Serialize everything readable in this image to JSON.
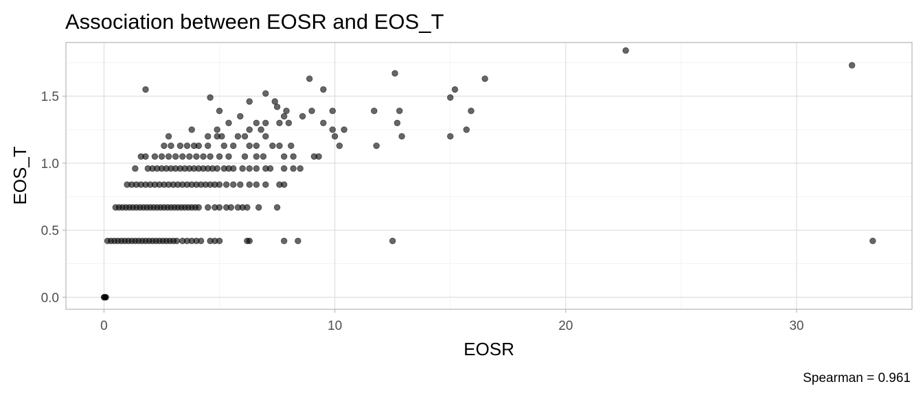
{
  "chart_data": {
    "type": "scatter",
    "title": "Association between EOSR and EOS_T",
    "xlabel": "EOSR",
    "ylabel": "EOS_T",
    "caption": "Spearman = 0.961",
    "xlim": [
      -1.65,
      35
    ],
    "ylim": [
      -0.09,
      1.9
    ],
    "xticks": [
      0,
      10,
      20,
      30
    ],
    "xtick_labels": [
      "0",
      "10",
      "20",
      "30"
    ],
    "yticks": [
      0.0,
      0.5,
      1.0,
      1.5
    ],
    "ytick_labels": [
      "0.0",
      "0.5",
      "1.0",
      "1.5"
    ],
    "grid": true,
    "point_color": "#000000",
    "point_alpha": 0.6,
    "points": [
      [
        0,
        0
      ],
      [
        0.02,
        0
      ],
      [
        0.05,
        0
      ],
      [
        0.08,
        0
      ],
      [
        0.15,
        0.42
      ],
      [
        0.3,
        0.42
      ],
      [
        0.45,
        0.42
      ],
      [
        0.6,
        0.42
      ],
      [
        0.75,
        0.42
      ],
      [
        0.9,
        0.42
      ],
      [
        1.05,
        0.42
      ],
      [
        1.2,
        0.42
      ],
      [
        1.35,
        0.42
      ],
      [
        1.5,
        0.42
      ],
      [
        1.65,
        0.42
      ],
      [
        1.8,
        0.42
      ],
      [
        1.95,
        0.42
      ],
      [
        2.1,
        0.42
      ],
      [
        2.25,
        0.42
      ],
      [
        2.4,
        0.42
      ],
      [
        2.55,
        0.42
      ],
      [
        2.7,
        0.42
      ],
      [
        2.85,
        0.42
      ],
      [
        3.0,
        0.42
      ],
      [
        3.15,
        0.42
      ],
      [
        3.4,
        0.42
      ],
      [
        3.6,
        0.42
      ],
      [
        3.8,
        0.42
      ],
      [
        4.0,
        0.42
      ],
      [
        4.2,
        0.42
      ],
      [
        4.6,
        0.42
      ],
      [
        4.8,
        0.42
      ],
      [
        5.0,
        0.42
      ],
      [
        6.2,
        0.42
      ],
      [
        6.3,
        0.42
      ],
      [
        7.8,
        0.42
      ],
      [
        8.4,
        0.42
      ],
      [
        12.5,
        0.42
      ],
      [
        33.3,
        0.42
      ],
      [
        0.5,
        0.67
      ],
      [
        0.65,
        0.67
      ],
      [
        0.8,
        0.67
      ],
      [
        0.95,
        0.67
      ],
      [
        1.1,
        0.67
      ],
      [
        1.25,
        0.67
      ],
      [
        1.4,
        0.67
      ],
      [
        1.55,
        0.67
      ],
      [
        1.7,
        0.67
      ],
      [
        1.85,
        0.67
      ],
      [
        2.0,
        0.67
      ],
      [
        2.15,
        0.67
      ],
      [
        2.3,
        0.67
      ],
      [
        2.45,
        0.67
      ],
      [
        2.6,
        0.67
      ],
      [
        2.75,
        0.67
      ],
      [
        2.9,
        0.67
      ],
      [
        3.05,
        0.67
      ],
      [
        3.2,
        0.67
      ],
      [
        3.35,
        0.67
      ],
      [
        3.5,
        0.67
      ],
      [
        3.65,
        0.67
      ],
      [
        3.8,
        0.67
      ],
      [
        3.95,
        0.67
      ],
      [
        4.1,
        0.67
      ],
      [
        4.5,
        0.67
      ],
      [
        4.8,
        0.67
      ],
      [
        5.0,
        0.67
      ],
      [
        5.3,
        0.67
      ],
      [
        5.5,
        0.67
      ],
      [
        5.8,
        0.67
      ],
      [
        6.0,
        0.67
      ],
      [
        6.2,
        0.67
      ],
      [
        6.7,
        0.67
      ],
      [
        7.5,
        0.67
      ],
      [
        1.0,
        0.84
      ],
      [
        1.2,
        0.84
      ],
      [
        1.4,
        0.84
      ],
      [
        1.6,
        0.84
      ],
      [
        1.8,
        0.84
      ],
      [
        2.0,
        0.84
      ],
      [
        2.2,
        0.84
      ],
      [
        2.4,
        0.84
      ],
      [
        2.6,
        0.84
      ],
      [
        2.8,
        0.84
      ],
      [
        3.0,
        0.84
      ],
      [
        3.2,
        0.84
      ],
      [
        3.4,
        0.84
      ],
      [
        3.6,
        0.84
      ],
      [
        3.8,
        0.84
      ],
      [
        4.0,
        0.84
      ],
      [
        4.2,
        0.84
      ],
      [
        4.4,
        0.84
      ],
      [
        4.6,
        0.84
      ],
      [
        4.8,
        0.84
      ],
      [
        5.0,
        0.84
      ],
      [
        5.3,
        0.84
      ],
      [
        5.6,
        0.84
      ],
      [
        5.9,
        0.84
      ],
      [
        6.3,
        0.84
      ],
      [
        6.6,
        0.84
      ],
      [
        7.0,
        0.84
      ],
      [
        7.6,
        0.84
      ],
      [
        7.8,
        0.84
      ],
      [
        1.35,
        0.96
      ],
      [
        1.9,
        0.96
      ],
      [
        2.1,
        0.96
      ],
      [
        2.3,
        0.96
      ],
      [
        2.5,
        0.96
      ],
      [
        2.7,
        0.96
      ],
      [
        2.9,
        0.96
      ],
      [
        3.1,
        0.96
      ],
      [
        3.3,
        0.96
      ],
      [
        3.5,
        0.96
      ],
      [
        3.7,
        0.96
      ],
      [
        3.9,
        0.96
      ],
      [
        4.1,
        0.96
      ],
      [
        4.3,
        0.96
      ],
      [
        4.5,
        0.96
      ],
      [
        4.7,
        0.96
      ],
      [
        4.9,
        0.96
      ],
      [
        5.2,
        0.96
      ],
      [
        5.4,
        0.96
      ],
      [
        5.6,
        0.96
      ],
      [
        6.0,
        0.96
      ],
      [
        6.3,
        0.96
      ],
      [
        6.6,
        0.96
      ],
      [
        7.0,
        0.96
      ],
      [
        7.2,
        0.96
      ],
      [
        7.8,
        0.96
      ],
      [
        8.2,
        0.96
      ],
      [
        8.5,
        0.96
      ],
      [
        1.6,
        1.05
      ],
      [
        1.8,
        1.05
      ],
      [
        2.2,
        1.05
      ],
      [
        2.5,
        1.05
      ],
      [
        2.8,
        1.05
      ],
      [
        3.1,
        1.05
      ],
      [
        3.4,
        1.05
      ],
      [
        3.7,
        1.05
      ],
      [
        4.0,
        1.05
      ],
      [
        4.3,
        1.05
      ],
      [
        4.6,
        1.05
      ],
      [
        5.0,
        1.05
      ],
      [
        5.4,
        1.05
      ],
      [
        6.1,
        1.05
      ],
      [
        6.6,
        1.05
      ],
      [
        6.9,
        1.05
      ],
      [
        7.8,
        1.05
      ],
      [
        8.2,
        1.05
      ],
      [
        9.1,
        1.05
      ],
      [
        9.3,
        1.05
      ],
      [
        2.6,
        1.13
      ],
      [
        2.9,
        1.13
      ],
      [
        3.3,
        1.13
      ],
      [
        3.6,
        1.13
      ],
      [
        3.9,
        1.13
      ],
      [
        4.1,
        1.13
      ],
      [
        4.5,
        1.13
      ],
      [
        5.2,
        1.13
      ],
      [
        5.6,
        1.13
      ],
      [
        6.3,
        1.13
      ],
      [
        6.6,
        1.13
      ],
      [
        7.3,
        1.13
      ],
      [
        7.6,
        1.13
      ],
      [
        8.1,
        1.13
      ],
      [
        10.2,
        1.13
      ],
      [
        11.8,
        1.13
      ],
      [
        2.8,
        1.2
      ],
      [
        4.5,
        1.2
      ],
      [
        4.9,
        1.2
      ],
      [
        5.1,
        1.2
      ],
      [
        5.8,
        1.2
      ],
      [
        6.1,
        1.2
      ],
      [
        7.0,
        1.2
      ],
      [
        10.0,
        1.2
      ],
      [
        12.9,
        1.2
      ],
      [
        15.0,
        1.2
      ],
      [
        3.8,
        1.25
      ],
      [
        4.9,
        1.25
      ],
      [
        6.3,
        1.25
      ],
      [
        6.8,
        1.25
      ],
      [
        9.9,
        1.25
      ],
      [
        10.4,
        1.25
      ],
      [
        15.7,
        1.25
      ],
      [
        5.4,
        1.3
      ],
      [
        6.6,
        1.3
      ],
      [
        7.0,
        1.3
      ],
      [
        7.6,
        1.3
      ],
      [
        8.0,
        1.3
      ],
      [
        9.5,
        1.3
      ],
      [
        12.7,
        1.3
      ],
      [
        7.8,
        1.35
      ],
      [
        8.6,
        1.35
      ],
      [
        5.9,
        1.35
      ],
      [
        5.0,
        1.39
      ],
      [
        7.9,
        1.39
      ],
      [
        9.0,
        1.39
      ],
      [
        9.9,
        1.39
      ],
      [
        11.7,
        1.39
      ],
      [
        12.8,
        1.39
      ],
      [
        15.9,
        1.39
      ],
      [
        7.5,
        1.42
      ],
      [
        6.3,
        1.46
      ],
      [
        7.4,
        1.46
      ],
      [
        4.6,
        1.49
      ],
      [
        15.0,
        1.49
      ],
      [
        7.0,
        1.52
      ],
      [
        1.8,
        1.55
      ],
      [
        9.5,
        1.55
      ],
      [
        15.2,
        1.55
      ],
      [
        8.9,
        1.63
      ],
      [
        16.5,
        1.63
      ],
      [
        12.6,
        1.67
      ],
      [
        32.4,
        1.73
      ],
      [
        22.6,
        1.84
      ]
    ]
  }
}
